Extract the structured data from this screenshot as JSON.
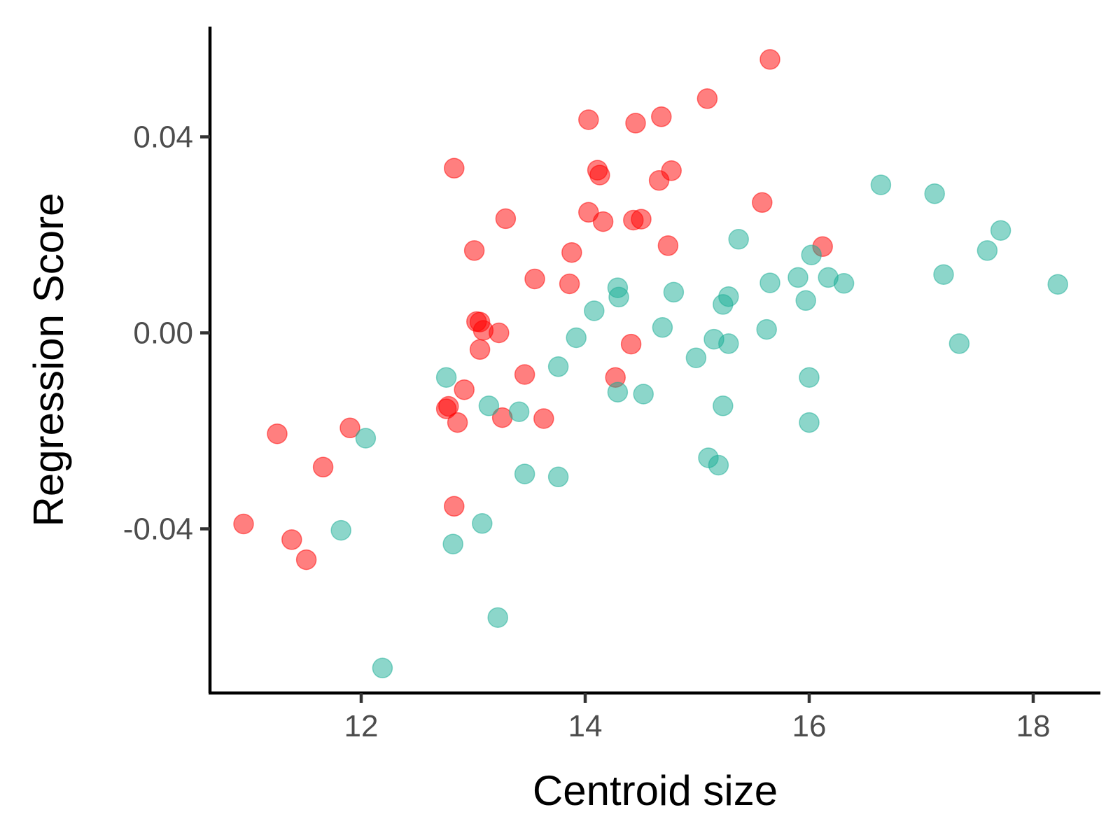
{
  "chart_data": {
    "type": "scatter",
    "xlabel": "Centroid size",
    "ylabel": "Regression Score",
    "xlim": [
      10.65,
      18.6
    ],
    "ylim": [
      -0.0735,
      0.0625
    ],
    "x_ticks": [
      12,
      14,
      16,
      18
    ],
    "x_tick_labels": [
      "12",
      "14",
      "16",
      "18"
    ],
    "y_ticks": [
      -0.04,
      0.0,
      0.04
    ],
    "y_tick_labels": [
      "-0.04",
      "0.00",
      "0.04"
    ],
    "grid": false,
    "legend": "none",
    "colors": {
      "red": "#ff0000",
      "teal": "#1aae96"
    },
    "point_alpha": 0.5,
    "series": [
      {
        "color": "#ff0000",
        "points": [
          [
            15.65,
            0.0558
          ],
          [
            15.09,
            0.0478
          ],
          [
            14.03,
            0.0435
          ],
          [
            14.45,
            0.0428
          ],
          [
            14.68,
            0.0441
          ],
          [
            12.83,
            0.0336
          ],
          [
            14.11,
            0.0332
          ],
          [
            14.13,
            0.0322
          ],
          [
            14.77,
            0.0331
          ],
          [
            14.66,
            0.0311
          ],
          [
            15.58,
            0.0266
          ],
          [
            13.29,
            0.0233
          ],
          [
            14.03,
            0.0246
          ],
          [
            14.16,
            0.0227
          ],
          [
            14.43,
            0.023
          ],
          [
            14.5,
            0.0232
          ],
          [
            14.74,
            0.0178
          ],
          [
            13.01,
            0.0168
          ],
          [
            13.88,
            0.0164
          ],
          [
            16.12,
            0.0176
          ],
          [
            13.55,
            0.011
          ],
          [
            13.86,
            0.01
          ],
          [
            13.03,
            0.0023
          ],
          [
            13.06,
            0.0022
          ],
          [
            13.09,
            0.0005
          ],
          [
            13.23,
            0.0
          ],
          [
            13.06,
            -0.0034
          ],
          [
            14.41,
            -0.0023
          ],
          [
            13.46,
            -0.0085
          ],
          [
            14.27,
            -0.0091
          ],
          [
            12.92,
            -0.0116
          ],
          [
            12.76,
            -0.0155
          ],
          [
            12.78,
            -0.015
          ],
          [
            12.86,
            -0.0183
          ],
          [
            13.26,
            -0.0173
          ],
          [
            13.63,
            -0.0175
          ],
          [
            11.25,
            -0.0206
          ],
          [
            11.9,
            -0.0194
          ],
          [
            11.66,
            -0.0274
          ],
          [
            12.83,
            -0.0354
          ],
          [
            10.95,
            -0.039
          ],
          [
            11.38,
            -0.0422
          ],
          [
            11.51,
            -0.0463
          ]
        ]
      },
      {
        "color": "#1aae96",
        "points": [
          [
            16.64,
            0.0302
          ],
          [
            17.12,
            0.0284
          ],
          [
            17.71,
            0.0209
          ],
          [
            17.59,
            0.0168
          ],
          [
            15.37,
            0.0191
          ],
          [
            16.02,
            0.0159
          ],
          [
            15.65,
            0.0102
          ],
          [
            15.9,
            0.0113
          ],
          [
            16.17,
            0.0113
          ],
          [
            16.31,
            0.0101
          ],
          [
            17.2,
            0.0119
          ],
          [
            18.22,
            0.0099
          ],
          [
            14.29,
            0.0092
          ],
          [
            14.3,
            0.0073
          ],
          [
            14.79,
            0.0083
          ],
          [
            15.28,
            0.0074
          ],
          [
            15.23,
            0.0058
          ],
          [
            15.97,
            0.0066
          ],
          [
            14.08,
            0.0045
          ],
          [
            14.69,
            0.0011
          ],
          [
            15.62,
            0.0007
          ],
          [
            13.92,
            -0.001
          ],
          [
            15.15,
            -0.0013
          ],
          [
            15.28,
            -0.0022
          ],
          [
            17.34,
            -0.0022
          ],
          [
            14.99,
            -0.0051
          ],
          [
            13.76,
            -0.0069
          ],
          [
            12.76,
            -0.0091
          ],
          [
            16.0,
            -0.0091
          ],
          [
            14.29,
            -0.0121
          ],
          [
            14.52,
            -0.0125
          ],
          [
            13.14,
            -0.0149
          ],
          [
            13.41,
            -0.0161
          ],
          [
            15.23,
            -0.0149
          ],
          [
            16.0,
            -0.0183
          ],
          [
            12.04,
            -0.0215
          ],
          [
            15.1,
            -0.0255
          ],
          [
            15.19,
            -0.027
          ],
          [
            13.46,
            -0.0288
          ],
          [
            13.76,
            -0.0294
          ],
          [
            11.82,
            -0.0403
          ],
          [
            13.08,
            -0.0389
          ],
          [
            12.82,
            -0.0431
          ],
          [
            13.22,
            -0.0581
          ],
          [
            12.19,
            -0.0684
          ]
        ]
      }
    ]
  }
}
